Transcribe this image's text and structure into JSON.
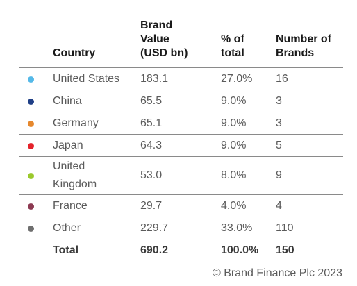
{
  "headers": {
    "country": "Country",
    "value": "Brand\nValue\n(USD bn)",
    "pct": "% of\n total",
    "count": "Number of\nBrands"
  },
  "rows": [
    {
      "country": "United States",
      "value": "183.1",
      "pct": "27.0%",
      "count": "16",
      "color": "#55b9e8"
    },
    {
      "country": "China",
      "value": "65.5",
      "pct": "9.0%",
      "count": "3",
      "color": "#1f3f86"
    },
    {
      "country": "Germany",
      "value": "65.1",
      "pct": "9.0%",
      "count": "3",
      "color": "#e6882e"
    },
    {
      "country": "Japan",
      "value": "64.3",
      "pct": "9.0%",
      "count": "5",
      "color": "#e4232b"
    },
    {
      "country": "United\nKingdom",
      "value": "53.0",
      "pct": "8.0%",
      "count": "9",
      "color": "#9bc92c"
    },
    {
      "country": "France",
      "value": "29.7",
      "pct": "4.0%",
      "count": "4",
      "color": "#8c3a52"
    },
    {
      "country": "Other",
      "value": "229.7",
      "pct": "33.0%",
      "count": "110",
      "color": "#6f6f6f"
    }
  ],
  "total": {
    "label": "Total",
    "value": "690.2",
    "pct": "100.0%",
    "count": "150"
  },
  "copyright": "© Brand Finance Plc 2023"
}
